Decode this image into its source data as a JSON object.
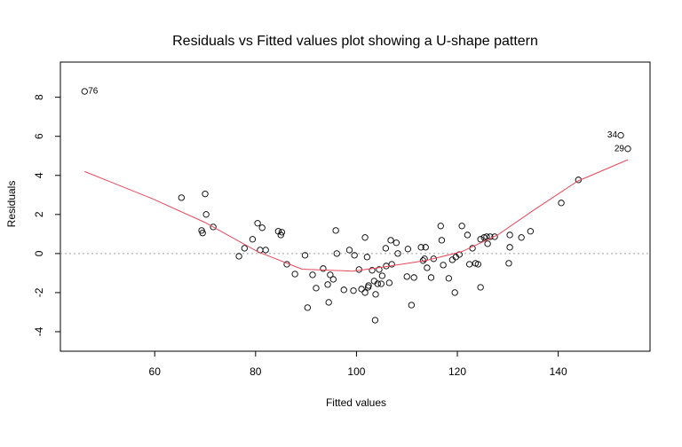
{
  "chart_data": {
    "type": "scatter",
    "title": "Residuals vs Fitted values plot showing a U-shape pattern",
    "x_label": "Fitted values",
    "y_label": "Residuals",
    "xlim": [
      41.3,
      158.2
    ],
    "ylim": [
      -5.0,
      9.8
    ],
    "xticks": [
      60,
      80,
      100,
      120,
      140
    ],
    "yticks": [
      -4,
      -2,
      0,
      2,
      4,
      6,
      8
    ],
    "reference_line": 0,
    "reference_color": "#a0a0a0",
    "point_color": "#000000",
    "points": {
      "x": [
        46.1,
        152.4,
        153.8,
        65.3,
        70.0,
        70.2,
        69.3,
        69.5,
        71.6,
        76.7,
        77.8,
        79.4,
        80.4,
        81.3,
        80.9,
        82.0,
        84.5,
        85.0,
        85.2,
        86.2,
        87.8,
        89.8,
        90.3,
        91.3,
        92.0,
        93.4,
        94.3,
        94.5,
        94.8,
        95.4,
        95.9,
        96.1,
        97.5,
        98.6,
        99.6,
        99.4,
        100.5,
        101.0,
        101.7,
        102.1,
        101.7,
        102.4,
        102.3,
        103.1,
        103.5,
        103.8,
        103.7,
        104.2,
        104.5,
        104.9,
        105.1,
        105.9,
        105.8,
        106.8,
        107.0,
        106.5,
        107.9,
        108.2,
        110.0,
        110.2,
        110.9,
        111.4,
        112.8,
        113.2,
        113.5,
        113.7,
        114.0,
        114.8,
        115.3,
        116.7,
        116.9,
        117.2,
        118.3,
        119.0,
        119.5,
        119.7,
        120.4,
        120.9,
        122.0,
        122.4,
        123.0,
        123.6,
        124.1,
        124.6,
        124.6,
        125.3,
        125.8,
        126.0,
        126.5,
        127.4,
        130.2,
        130.4,
        130.4,
        132.7,
        134.5,
        140.6,
        144.0
      ],
      "y": [
        8.3,
        6.05,
        5.36,
        2.86,
        3.05,
        2.0,
        1.18,
        1.05,
        1.36,
        -0.14,
        0.27,
        0.73,
        1.55,
        1.32,
        0.18,
        0.18,
        1.14,
        0.95,
        1.09,
        -0.55,
        -1.05,
        -0.09,
        -2.77,
        -1.09,
        -1.77,
        -0.77,
        -1.59,
        -2.5,
        -1.09,
        -1.32,
        1.18,
        0.0,
        -1.86,
        0.18,
        -0.09,
        -1.9,
        -0.82,
        -1.82,
        0.82,
        -0.18,
        -2.0,
        -1.64,
        -1.73,
        -0.86,
        -1.41,
        -2.09,
        -3.41,
        -1.55,
        -0.82,
        -1.55,
        -1.14,
        -0.64,
        0.27,
        0.68,
        -0.55,
        -1.5,
        0.55,
        0.0,
        -1.18,
        0.23,
        -2.64,
        -1.23,
        0.32,
        -0.36,
        -0.27,
        0.32,
        -0.73,
        -1.23,
        -0.27,
        1.41,
        0.68,
        -0.59,
        -1.27,
        -0.32,
        -2.0,
        -0.18,
        -0.05,
        1.41,
        0.95,
        -0.55,
        0.27,
        -0.5,
        -0.55,
        0.73,
        -1.73,
        0.82,
        0.86,
        0.5,
        0.86,
        0.86,
        -0.5,
        0.32,
        0.95,
        0.82,
        1.14,
        2.59,
        3.77
      ],
      "labels": [
        "76",
        "34",
        "29",
        null,
        null,
        null,
        null,
        null,
        null,
        null,
        null,
        null,
        null,
        null,
        null,
        null,
        null,
        null,
        null,
        null,
        null,
        null,
        null,
        null,
        null,
        null,
        null,
        null,
        null,
        null,
        null,
        null,
        null,
        null,
        null,
        null,
        null,
        null,
        null,
        null,
        null,
        null,
        null,
        null,
        null,
        null,
        null,
        null,
        null,
        null,
        null,
        null,
        null,
        null,
        null,
        null,
        null,
        null,
        null,
        null,
        null,
        null,
        null,
        null,
        null,
        null,
        null,
        null,
        null,
        null,
        null,
        null,
        null,
        null,
        null,
        null,
        null,
        null,
        null,
        null,
        null,
        null,
        null,
        null,
        null,
        null,
        null,
        null,
        null,
        null,
        null,
        null,
        null,
        null,
        null,
        null,
        null
      ]
    },
    "smooth": {
      "color": "#e8485a",
      "x": [
        46.1,
        59.6,
        69.9,
        80.4,
        89.2,
        99.3,
        105.1,
        113.9,
        120.9,
        128.0,
        135.0,
        143.8,
        153.8
      ],
      "y": [
        4.2,
        2.8,
        1.6,
        0.1,
        -0.8,
        -0.9,
        -0.7,
        -0.35,
        0.1,
        0.95,
        2.2,
        3.7,
        4.8
      ]
    }
  }
}
